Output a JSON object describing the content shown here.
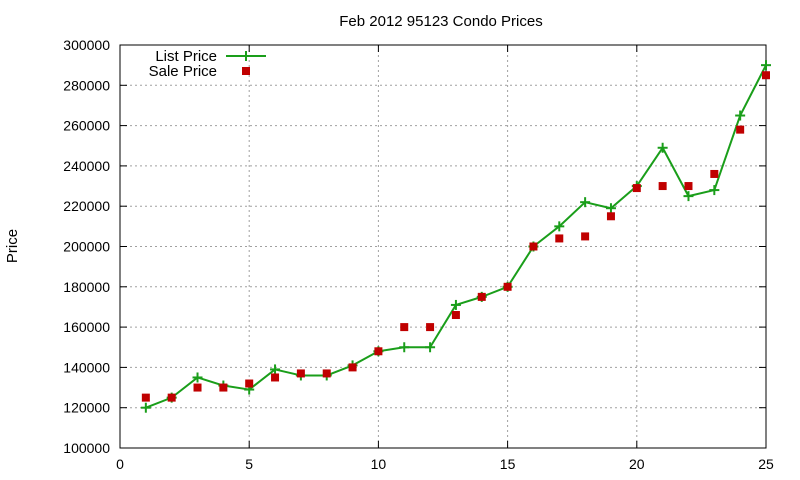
{
  "chart_data": {
    "type": "line",
    "title": "Feb 2012 95123 Condo Prices",
    "xlabel": "",
    "ylabel": "Price",
    "xlim": [
      0,
      25
    ],
    "ylim": [
      100000,
      300000
    ],
    "xticks": [
      0,
      5,
      10,
      15,
      20,
      25
    ],
    "yticks": [
      100000,
      120000,
      140000,
      160000,
      180000,
      200000,
      220000,
      240000,
      260000,
      280000,
      300000
    ],
    "grid": true,
    "legend_position": "top-left",
    "series": [
      {
        "name": "List Price",
        "style": "line-with-plus-markers",
        "color": "#1a9e1a",
        "x": [
          1,
          2,
          3,
          4,
          5,
          6,
          7,
          8,
          9,
          10,
          11,
          12,
          13,
          14,
          15,
          16,
          17,
          18,
          19,
          20,
          21,
          22,
          23,
          24,
          25
        ],
        "values": [
          120000,
          125000,
          135000,
          131000,
          129000,
          139000,
          136000,
          136000,
          141000,
          148000,
          150000,
          150000,
          171000,
          175000,
          180000,
          200000,
          210000,
          222000,
          219000,
          230000,
          249000,
          225000,
          228000,
          265000,
          290000
        ]
      },
      {
        "name": "Sale Price",
        "style": "square-markers",
        "color": "#c00000",
        "x": [
          1,
          2,
          3,
          4,
          5,
          6,
          7,
          8,
          9,
          10,
          11,
          12,
          13,
          14,
          15,
          16,
          17,
          18,
          19,
          20,
          21,
          22,
          23,
          24,
          25
        ],
        "values": [
          125000,
          125000,
          130000,
          130000,
          132000,
          135000,
          137000,
          137000,
          140000,
          148000,
          160000,
          160000,
          166000,
          175000,
          180000,
          200000,
          204000,
          205000,
          215000,
          229000,
          230000,
          230000,
          236000,
          258000,
          285000
        ]
      }
    ]
  }
}
